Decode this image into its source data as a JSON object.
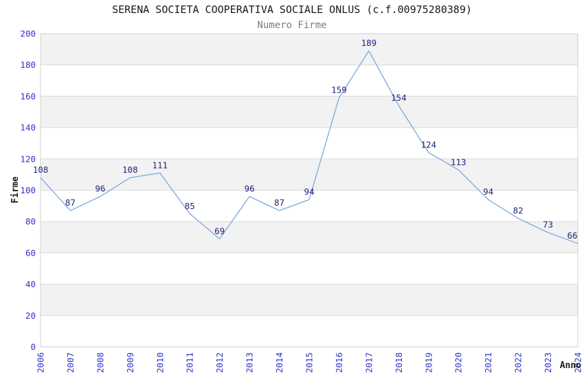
{
  "chart_data": {
    "type": "line",
    "title": "SERENA SOCIETA COOPERATIVA SOCIALE ONLUS (c.f.00975280389)",
    "subtitle": "Numero Firme",
    "xlabel": "Anno",
    "ylabel": "Firme",
    "categories": [
      "2006",
      "2007",
      "2008",
      "2009",
      "2010",
      "2011",
      "2012",
      "2013",
      "2014",
      "2015",
      "2016",
      "2017",
      "2018",
      "2019",
      "2020",
      "2021",
      "2022",
      "2023",
      "2024"
    ],
    "values": [
      108,
      87,
      96,
      108,
      111,
      85,
      69,
      96,
      87,
      94,
      159,
      189,
      154,
      124,
      113,
      94,
      82,
      73,
      66
    ],
    "ylim": [
      0,
      200
    ],
    "ytick_step": 20,
    "yticks": [
      0,
      20,
      40,
      60,
      80,
      100,
      120,
      140,
      160,
      180,
      200
    ],
    "grid": true,
    "legend_position": "none",
    "colors": {
      "line": "#7ca7db",
      "band_gray": "#f2f2f2",
      "band_white": "#ffffff",
      "gridline": "#d9d9d9",
      "plot_border": "#d0d0d0",
      "tick_label": "#3232cd",
      "point_label": "#24247c",
      "title": "#1a1a1a",
      "subtitle": "#7d7d7d"
    }
  }
}
